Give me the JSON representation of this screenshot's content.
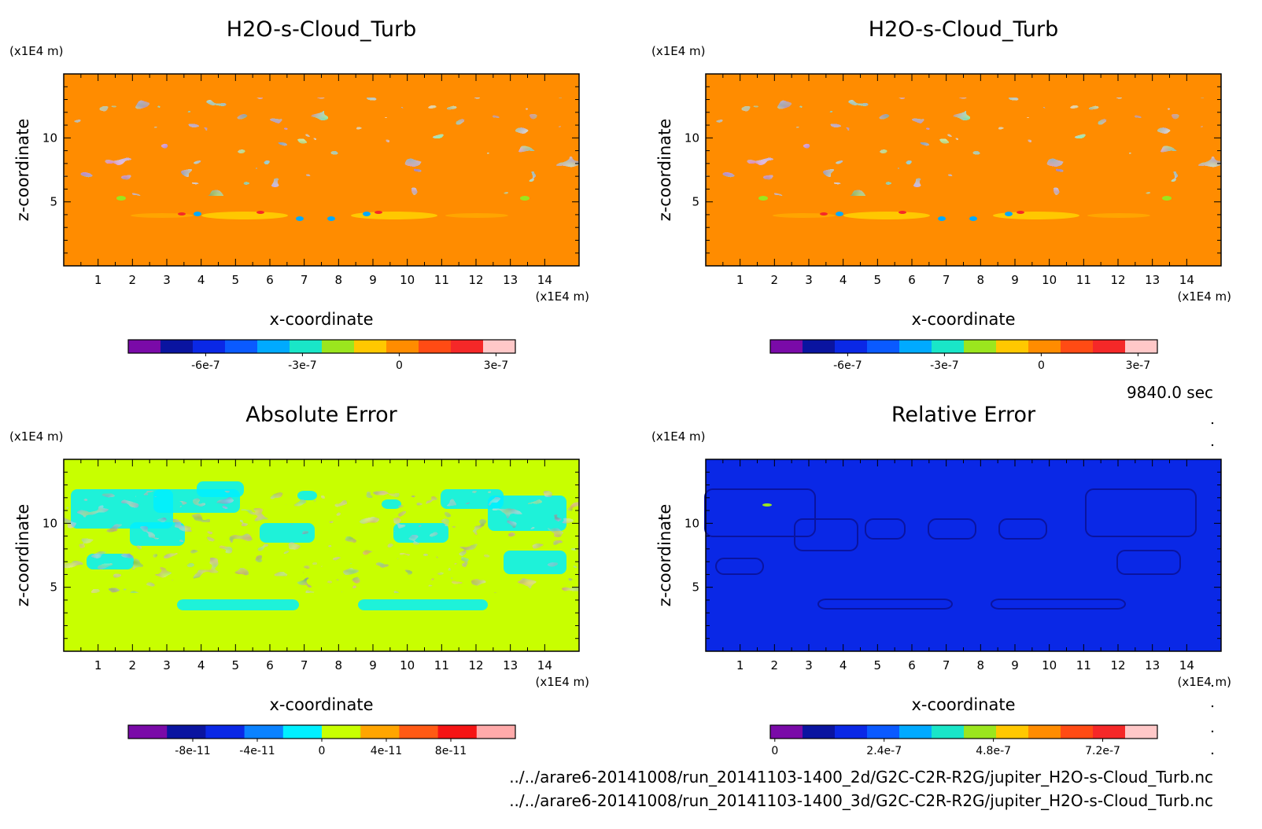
{
  "footer": {
    "time": "9840.0 sec",
    "file_2d": "../../arare6-20141008/run_20141103-1400_2d/G2C-C2R-R2G/jupiter_H2O-s-Cloud_Turb.nc",
    "file_3d": "../../arare6-20141008/run_20141103-1400_3d/G2C-C2R-R2G/jupiter_H2O-s-Cloud_Turb.nc"
  },
  "chart_data": [
    {
      "type": "heatmap",
      "title": "H2O-s-Cloud_Turb",
      "xlabel": "x-coordinate",
      "ylabel": "z-coordinate",
      "x_unit": "(x1E4 m)",
      "y_unit": "(x1E4 m)",
      "xlim": [
        0,
        15
      ],
      "ylim": [
        0,
        15
      ],
      "xticks": [
        "1",
        "2",
        "3",
        "4",
        "5",
        "6",
        "7",
        "8",
        "9",
        "10",
        "11",
        "12",
        "13",
        "14"
      ],
      "yticks": [
        "5",
        "10"
      ],
      "background_color": "#ff8c00",
      "colorbar": {
        "colors": [
          "#7a0aa8",
          "#0a14a0",
          "#0a28e6",
          "#0a5aff",
          "#00aaff",
          "#19e6c8",
          "#9be61e",
          "#ffc800",
          "#ff8c00",
          "#ff4b14",
          "#f52828",
          "#ffc8c8"
        ],
        "ticks": [
          "-6e-7",
          "-3e-7",
          "0",
          "3e-7"
        ],
        "tick_values": [
          -6e-07,
          -3e-07,
          0,
          3e-07
        ],
        "range": [
          -8.4e-07,
          3.6e-07
        ]
      }
    },
    {
      "type": "heatmap",
      "title": "H2O-s-Cloud_Turb",
      "xlabel": "x-coordinate",
      "ylabel": "z-coordinate",
      "x_unit": "(x1E4 m)",
      "y_unit": "(x1E4 m)",
      "xlim": [
        0,
        15
      ],
      "ylim": [
        0,
        15
      ],
      "xticks": [
        "1",
        "2",
        "3",
        "4",
        "5",
        "6",
        "7",
        "8",
        "9",
        "10",
        "11",
        "12",
        "13",
        "14"
      ],
      "yticks": [
        "5",
        "10"
      ],
      "background_color": "#ff8c00",
      "colorbar": {
        "colors": [
          "#7a0aa8",
          "#0a14a0",
          "#0a28e6",
          "#0a5aff",
          "#00aaff",
          "#19e6c8",
          "#9be61e",
          "#ffc800",
          "#ff8c00",
          "#ff4b14",
          "#f52828",
          "#ffc8c8"
        ],
        "ticks": [
          "-6e-7",
          "-3e-7",
          "0",
          "3e-7"
        ],
        "tick_values": [
          -6e-07,
          -3e-07,
          0,
          3e-07
        ],
        "range": [
          -8.4e-07,
          3.6e-07
        ]
      }
    },
    {
      "type": "heatmap",
      "title": "Absolute Error",
      "xlabel": "x-coordinate",
      "ylabel": "z-coordinate",
      "x_unit": "(x1E4 m)",
      "y_unit": "(x1E4 m)",
      "xlim": [
        0,
        15
      ],
      "ylim": [
        0,
        15
      ],
      "xticks": [
        "1",
        "2",
        "3",
        "4",
        "5",
        "6",
        "7",
        "8",
        "9",
        "10",
        "11",
        "12",
        "13",
        "14"
      ],
      "yticks": [
        "5",
        "10"
      ],
      "background_color": "#c8ff00",
      "colorbar": {
        "colors": [
          "#7a0aa8",
          "#0a14a0",
          "#0a28e6",
          "#0a82ff",
          "#00f0ff",
          "#c8ff00",
          "#ffa500",
          "#ff5a14",
          "#f51414",
          "#ffaaaa"
        ],
        "ticks": [
          "-8e-11",
          "-4e-11",
          "0",
          "4e-11",
          "8e-11"
        ],
        "tick_values": [
          -8e-11,
          -4e-11,
          0,
          4e-11,
          8e-11
        ],
        "range": [
          -1.2e-10,
          1.2e-10
        ]
      }
    },
    {
      "type": "heatmap",
      "title": "Relative Error",
      "xlabel": "x-coordinate",
      "ylabel": "z-coordinate",
      "x_unit": "(x1E4 m)",
      "y_unit": "(x1E4 m)",
      "xlim": [
        0,
        15
      ],
      "ylim": [
        0,
        15
      ],
      "xticks": [
        "1",
        "2",
        "3",
        "4",
        "5",
        "6",
        "7",
        "8",
        "9",
        "10",
        "11",
        "12",
        "13",
        "14"
      ],
      "yticks": [
        "5",
        "10"
      ],
      "background_color": "#0a28e6",
      "colorbar": {
        "colors": [
          "#7a0aa8",
          "#0a14a0",
          "#0a28e6",
          "#0a5aff",
          "#00aaff",
          "#19e6c8",
          "#9be61e",
          "#ffc800",
          "#ff8c00",
          "#ff4b14",
          "#f52828",
          "#ffc8c8"
        ],
        "ticks": [
          "0",
          "2.4e-7",
          "4.8e-7",
          "7.2e-7"
        ],
        "tick_values": [
          0,
          2.4e-07,
          4.8e-07,
          7.2e-07
        ],
        "range": [
          -1e-08,
          8.4e-07
        ]
      }
    }
  ]
}
